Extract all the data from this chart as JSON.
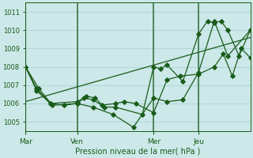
{
  "bg_color": "#cce8e8",
  "grid_color": "#b0d8d8",
  "line_color": "#1a5c1a",
  "xlabel": "Pression niveau de la mer( hPa )",
  "xlabel_color": "#1a5c1a",
  "tick_color": "#1a5c1a",
  "ylim": [
    1004.5,
    1011.5
  ],
  "yticks": [
    1005,
    1006,
    1007,
    1008,
    1009,
    1010,
    1011
  ],
  "day_labels": [
    "Mar",
    "Ven",
    "Mer",
    "Jeu"
  ],
  "day_positions": [
    0.0,
    0.23,
    0.57,
    0.77
  ],
  "trend": {
    "x": [
      0.0,
      1.0
    ],
    "y": [
      1006.1,
      1009.6
    ]
  },
  "series1": {
    "x": [
      0.0,
      0.06,
      0.12,
      0.23,
      0.27,
      0.31,
      0.35,
      0.4,
      0.52,
      0.57,
      0.6,
      0.63,
      0.7,
      0.77,
      0.81,
      0.84,
      0.87,
      0.9,
      0.95,
      1.0
    ],
    "y": [
      1008.0,
      1006.8,
      1005.9,
      1006.0,
      1006.4,
      1006.3,
      1005.8,
      1005.8,
      1005.4,
      1008.0,
      1007.9,
      1008.1,
      1007.2,
      1009.8,
      1010.5,
      1010.4,
      1010.5,
      1010.0,
      1008.6,
      1010.0
    ]
  },
  "series2": {
    "x": [
      0.0,
      0.05,
      0.11,
      0.23,
      0.26,
      0.3,
      0.34,
      0.4,
      0.44,
      0.49,
      0.57,
      0.63,
      0.69,
      0.77,
      0.84,
      0.88,
      0.92,
      0.96,
      1.0
    ],
    "y": [
      1008.0,
      1006.7,
      1006.0,
      1006.1,
      1006.3,
      1006.2,
      1005.9,
      1006.0,
      1006.1,
      1006.0,
      1005.5,
      1007.3,
      1007.5,
      1007.6,
      1008.0,
      1008.7,
      1007.5,
      1009.0,
      1008.5
    ]
  },
  "series3": {
    "x": [
      0.0,
      0.05,
      0.11,
      0.17,
      0.23,
      0.3,
      0.39,
      0.48,
      0.57,
      0.63,
      0.7,
      0.77,
      0.84,
      0.9,
      1.0
    ],
    "y": [
      1008.0,
      1006.8,
      1006.0,
      1005.9,
      1006.0,
      1005.8,
      1005.4,
      1004.7,
      1006.3,
      1006.1,
      1006.2,
      1007.7,
      1010.5,
      1008.6,
      1010.0
    ]
  }
}
